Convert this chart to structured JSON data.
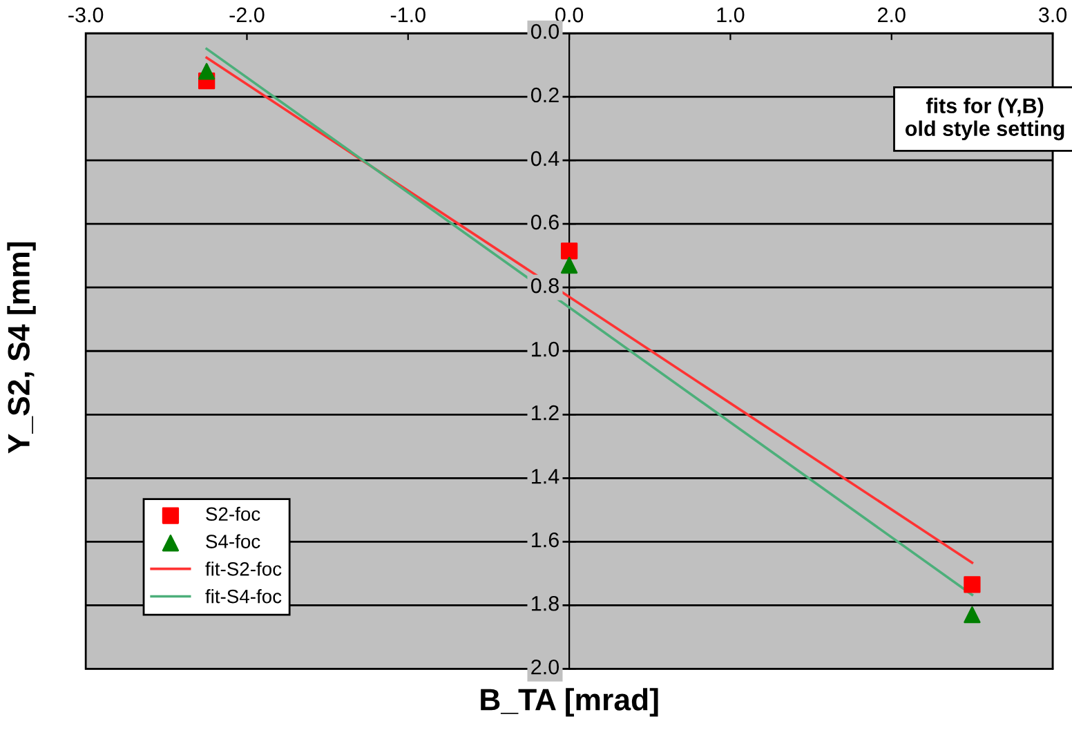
{
  "chart_data": {
    "type": "scatter",
    "xlabel": "B_TA [mrad]",
    "ylabel": "Y_S2, S4 [mm]",
    "annotations": [
      "fits for (Y,B)\nold style setting"
    ],
    "series": [
      {
        "name": "S2-foc",
        "type": "scatter",
        "marker": "square",
        "color": "#ff0000",
        "x": [
          -2.25,
          0,
          2.5
        ],
        "values": [
          0.15,
          0.685,
          1.735
        ]
      },
      {
        "name": "S4-foc",
        "type": "scatter",
        "marker": "triangle",
        "color": "#007f00",
        "x": [
          -2.25,
          0,
          2.5
        ],
        "values": [
          0.12,
          0.73,
          1.83
        ]
      },
      {
        "name": "fit-S2-foc",
        "type": "line",
        "marker": "none",
        "color": "#ff3333",
        "x": [
          -2.25,
          2.5
        ],
        "values": [
          0.077,
          1.666
        ]
      },
      {
        "name": "fit-S4-foc",
        "type": "line",
        "marker": "none",
        "color": "#4caf7a",
        "x": [
          -2.25,
          2.5
        ],
        "values": [
          0.049,
          1.767
        ]
      }
    ],
    "xlim": [
      -3,
      3
    ],
    "ylim": [
      2,
      0
    ],
    "xticks": [
      {
        "value": -3,
        "label": "-3.0"
      },
      {
        "value": -2,
        "label": "-2.0"
      },
      {
        "value": -1,
        "label": "-1.0"
      },
      {
        "value": 0,
        "label": "0.0"
      },
      {
        "value": 1,
        "label": "1.0"
      },
      {
        "value": 2,
        "label": "2.0"
      },
      {
        "value": 3,
        "label": "3.0"
      }
    ],
    "yticks": [
      {
        "value": 0,
        "label": "0.0"
      },
      {
        "value": 0.2,
        "label": "0.2"
      },
      {
        "value": 0.4,
        "label": "0.4"
      },
      {
        "value": 0.6,
        "label": "0.6"
      },
      {
        "value": 0.8,
        "label": "0.8"
      },
      {
        "value": 1,
        "label": "1.0"
      },
      {
        "value": 1.2,
        "label": "1.2"
      },
      {
        "value": 1.4,
        "label": "1.4"
      },
      {
        "value": 1.6,
        "label": "1.6"
      },
      {
        "value": 1.8,
        "label": "1.8"
      },
      {
        "value": 2,
        "label": "2.0"
      }
    ],
    "grid": "y",
    "legend": "bottom left"
  }
}
